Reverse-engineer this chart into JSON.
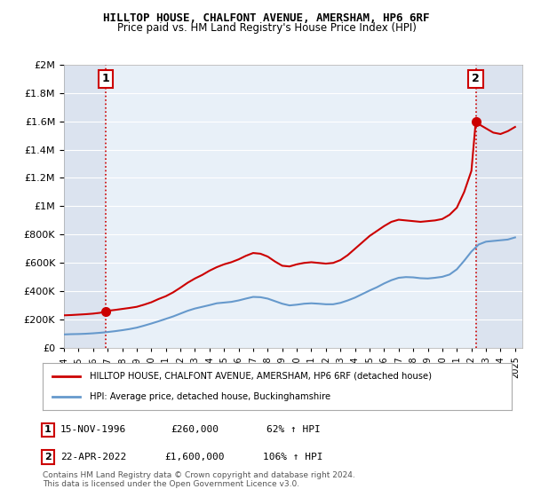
{
  "title": "HILLTOP HOUSE, CHALFONT AVENUE, AMERSHAM, HP6 6RF",
  "subtitle": "Price paid vs. HM Land Registry's House Price Index (HPI)",
  "legend_line1": "HILLTOP HOUSE, CHALFONT AVENUE, AMERSHAM, HP6 6RF (detached house)",
  "legend_line2": "HPI: Average price, detached house, Buckinghamshire",
  "footnote": "Contains HM Land Registry data © Crown copyright and database right 2024.\nThis data is licensed under the Open Government Licence v3.0.",
  "sale1_label": "1",
  "sale1_date": "15-NOV-1996",
  "sale1_price": "£260,000",
  "sale1_hpi": "62% ↑ HPI",
  "sale2_label": "2",
  "sale2_date": "22-APR-2022",
  "sale2_price": "£1,600,000",
  "sale2_hpi": "106% ↑ HPI",
  "red_color": "#cc0000",
  "blue_color": "#6699cc",
  "background_color": "#ffffff",
  "plot_bg_color": "#e8f0f8",
  "grid_color": "#ffffff",
  "hatch_color": "#cccccc",
  "xmin": 1994.0,
  "xmax": 2025.5,
  "ymin": 0,
  "ymax": 2000000,
  "red_x": [
    1994.0,
    1994.5,
    1995.0,
    1995.5,
    1996.0,
    1996.5,
    1996.88,
    1997.0,
    1997.5,
    1998.0,
    1998.5,
    1999.0,
    1999.5,
    2000.0,
    2000.5,
    2001.0,
    2001.5,
    2002.0,
    2002.5,
    2003.0,
    2003.5,
    2004.0,
    2004.5,
    2005.0,
    2005.5,
    2006.0,
    2006.5,
    2007.0,
    2007.5,
    2008.0,
    2008.5,
    2009.0,
    2009.5,
    2010.0,
    2010.5,
    2011.0,
    2011.5,
    2012.0,
    2012.5,
    2013.0,
    2013.5,
    2014.0,
    2014.5,
    2015.0,
    2015.5,
    2016.0,
    2016.5,
    2017.0,
    2017.5,
    2018.0,
    2018.5,
    2019.0,
    2019.5,
    2020.0,
    2020.5,
    2021.0,
    2021.5,
    2022.0,
    2022.3,
    2022.5,
    2023.0,
    2023.5,
    2024.0,
    2024.5,
    2025.0
  ],
  "red_y": [
    230000,
    232000,
    235000,
    238000,
    242000,
    248000,
    260000,
    262000,
    268000,
    275000,
    282000,
    290000,
    305000,
    322000,
    345000,
    365000,
    392000,
    425000,
    460000,
    490000,
    515000,
    545000,
    570000,
    590000,
    605000,
    625000,
    650000,
    670000,
    665000,
    645000,
    610000,
    580000,
    575000,
    590000,
    600000,
    605000,
    600000,
    595000,
    600000,
    620000,
    655000,
    700000,
    745000,
    790000,
    825000,
    860000,
    890000,
    905000,
    900000,
    895000,
    890000,
    895000,
    900000,
    910000,
    940000,
    990000,
    1100000,
    1250000,
    1600000,
    1580000,
    1550000,
    1520000,
    1510000,
    1530000,
    1560000
  ],
  "blue_x": [
    1994.0,
    1994.5,
    1995.0,
    1995.5,
    1996.0,
    1996.5,
    1997.0,
    1997.5,
    1998.0,
    1998.5,
    1999.0,
    1999.5,
    2000.0,
    2000.5,
    2001.0,
    2001.5,
    2002.0,
    2002.5,
    2003.0,
    2003.5,
    2004.0,
    2004.5,
    2005.0,
    2005.5,
    2006.0,
    2006.5,
    2007.0,
    2007.5,
    2008.0,
    2008.5,
    2009.0,
    2009.5,
    2010.0,
    2010.5,
    2011.0,
    2011.5,
    2012.0,
    2012.5,
    2013.0,
    2013.5,
    2014.0,
    2014.5,
    2015.0,
    2015.5,
    2016.0,
    2016.5,
    2017.0,
    2017.5,
    2018.0,
    2018.5,
    2019.0,
    2019.5,
    2020.0,
    2020.5,
    2021.0,
    2021.5,
    2022.0,
    2022.5,
    2023.0,
    2023.5,
    2024.0,
    2024.5,
    2025.0
  ],
  "blue_y": [
    95000,
    97000,
    98000,
    100000,
    103000,
    107000,
    112000,
    118000,
    125000,
    133000,
    143000,
    157000,
    172000,
    188000,
    205000,
    222000,
    242000,
    262000,
    278000,
    290000,
    302000,
    315000,
    320000,
    325000,
    335000,
    348000,
    360000,
    358000,
    348000,
    330000,
    312000,
    300000,
    305000,
    312000,
    315000,
    312000,
    308000,
    308000,
    318000,
    335000,
    355000,
    380000,
    405000,
    428000,
    455000,
    478000,
    495000,
    500000,
    498000,
    492000,
    490000,
    495000,
    502000,
    518000,
    555000,
    615000,
    680000,
    730000,
    750000,
    755000,
    760000,
    765000,
    780000
  ],
  "sale1_x": 1996.88,
  "sale1_y": 260000,
  "sale2_x": 2022.3,
  "sale2_y": 1600000,
  "yticks": [
    0,
    200000,
    400000,
    600000,
    800000,
    1000000,
    1200000,
    1400000,
    1600000,
    1800000,
    2000000
  ],
  "ytick_labels": [
    "£0",
    "£200K",
    "£400K",
    "£600K",
    "£800K",
    "£1M",
    "£1.2M",
    "£1.4M",
    "£1.6M",
    "£1.8M",
    "£2M"
  ],
  "xtick_years": [
    1994,
    1995,
    1996,
    1997,
    1998,
    1999,
    2000,
    2001,
    2002,
    2003,
    2004,
    2005,
    2006,
    2007,
    2008,
    2009,
    2010,
    2011,
    2012,
    2013,
    2014,
    2015,
    2016,
    2017,
    2018,
    2019,
    2020,
    2021,
    2022,
    2023,
    2024,
    2025
  ]
}
